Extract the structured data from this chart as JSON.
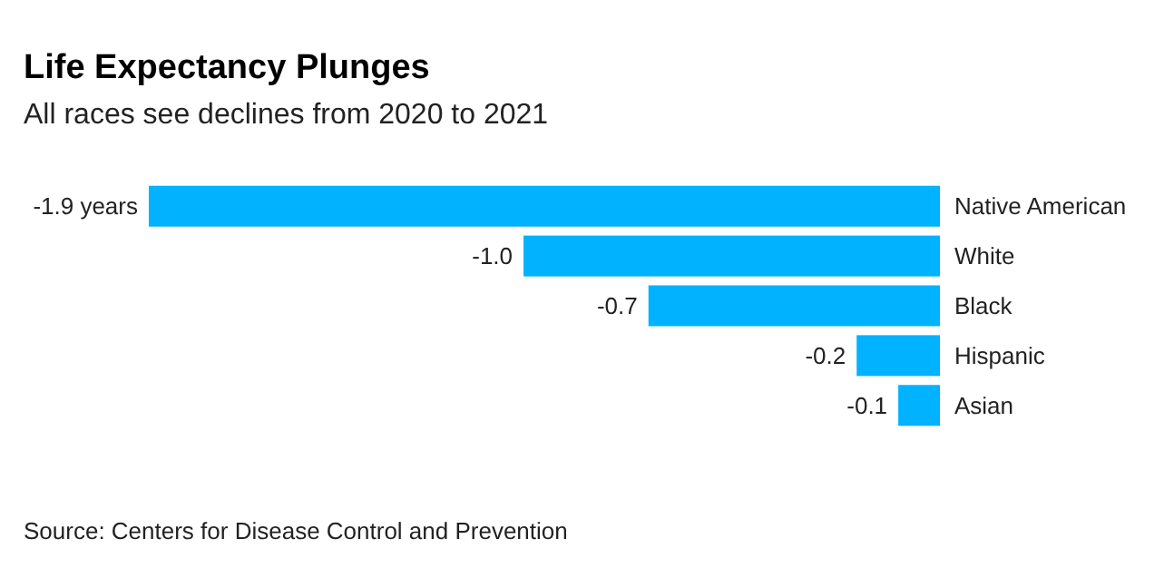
{
  "chart_data": {
    "type": "bar",
    "orientation": "horizontal",
    "title": "Life Expectancy Plunges",
    "subtitle": "All races see declines from 2020 to 2021",
    "categories": [
      "Native American",
      "White",
      "Black",
      "Hispanic",
      "Asian"
    ],
    "values": [
      -1.9,
      -1.0,
      -0.7,
      -0.2,
      -0.1
    ],
    "value_labels": [
      "-1.9 years",
      "-1.0",
      "-0.7",
      "-0.2",
      "-0.1"
    ],
    "color": "#00b2ff",
    "annotations": [
      "Source: Centers for Disease Control and Prevention"
    ]
  }
}
